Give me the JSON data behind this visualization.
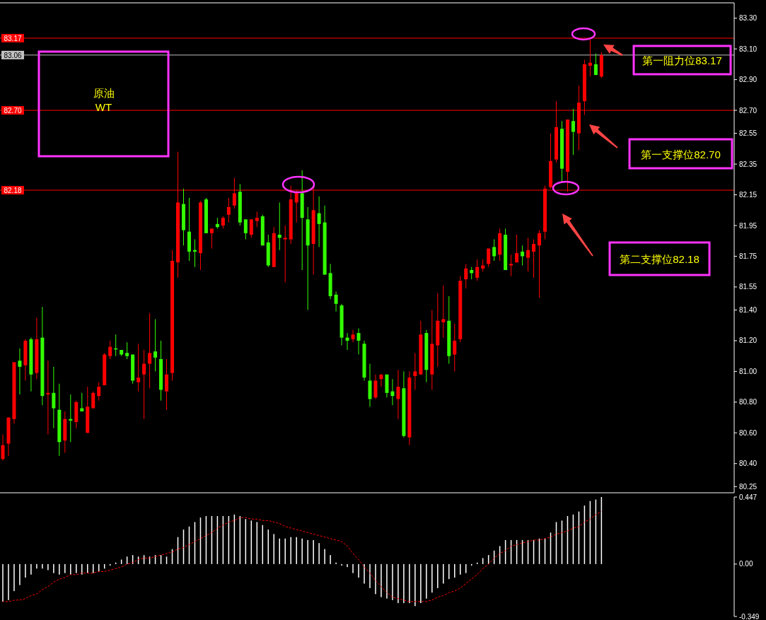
{
  "chart_data": [
    {
      "type": "candlestick",
      "categories": [
        null,
        null,
        null,
        null,
        null,
        null,
        null,
        null,
        null,
        null,
        null,
        null,
        null,
        null,
        null,
        null,
        null,
        null,
        null,
        null,
        null,
        null,
        null,
        null,
        null,
        null,
        null,
        null,
        null,
        null,
        null,
        null,
        null,
        null,
        null,
        null,
        null,
        null,
        null,
        null,
        null,
        null,
        null,
        null,
        null,
        null,
        null,
        null,
        null,
        null,
        null,
        null,
        null,
        null,
        null,
        null,
        null,
        null,
        null,
        null,
        null,
        null,
        null,
        null,
        null,
        null,
        null,
        null,
        null,
        null,
        null,
        null,
        null,
        null,
        null,
        null,
        null,
        null,
        null,
        null,
        null,
        null,
        null,
        null,
        null,
        null,
        null,
        null,
        null,
        null,
        null,
        null,
        null,
        null,
        null,
        null,
        null,
        null,
        null,
        null,
        null,
        null,
        null,
        null,
        null,
        null,
        null,
        null,
        null,
        null,
        null,
        null,
        null,
        null,
        null,
        null,
        null,
        null,
        null,
        null,
        null,
        null,
        null,
        null,
        null,
        null,
        null,
        null,
        null,
        null
      ],
      "ohlc": [
        [
          80.43,
          80.59,
          80.42,
          80.52
        ],
        [
          80.53,
          80.7,
          80.45,
          80.7
        ],
        [
          80.69,
          81.06,
          80.66,
          81.06
        ],
        [
          81.07,
          81.15,
          80.85,
          81.03
        ],
        [
          81.04,
          81.21,
          80.94,
          81.2
        ],
        [
          81.21,
          81.22,
          80.87,
          80.98
        ],
        [
          80.99,
          81.35,
          80.95,
          81.21
        ],
        [
          81.22,
          81.42,
          80.78,
          80.84
        ],
        [
          80.85,
          81.07,
          80.59,
          80.86
        ],
        [
          80.86,
          81.03,
          80.63,
          80.76
        ],
        [
          80.75,
          80.92,
          80.45,
          80.54
        ],
        [
          80.55,
          80.74,
          80.47,
          80.69
        ],
        [
          80.69,
          80.85,
          80.54,
          80.68
        ],
        [
          80.67,
          80.81,
          80.63,
          80.8
        ],
        [
          80.76,
          80.86,
          80.74,
          80.74
        ],
        [
          80.6,
          80.9,
          80.6,
          80.77
        ],
        [
          80.76,
          80.87,
          80.76,
          80.86
        ],
        [
          80.84,
          80.93,
          80.81,
          80.9
        ],
        [
          80.91,
          81.12,
          80.91,
          81.11
        ],
        [
          81.1,
          81.2,
          81.08,
          81.16
        ],
        [
          81.15,
          81.24,
          81.1,
          81.15
        ],
        [
          81.14,
          81.14,
          81.1,
          81.11
        ],
        [
          81.12,
          81.19,
          81.08,
          81.1
        ],
        [
          81.11,
          81.11,
          80.92,
          80.94
        ],
        [
          80.93,
          81.18,
          80.87,
          80.96
        ],
        [
          80.98,
          81.14,
          80.69,
          81.05
        ],
        [
          81.05,
          81.38,
          80.89,
          81.12
        ],
        [
          81.13,
          81.34,
          81.0,
          81.09
        ],
        [
          81.08,
          81.2,
          80.81,
          80.88
        ],
        [
          80.87,
          81.08,
          80.75,
          80.98
        ],
        [
          80.99,
          81.79,
          80.94,
          81.72
        ],
        [
          81.71,
          82.43,
          81.61,
          82.1
        ],
        [
          82.09,
          82.19,
          81.82,
          81.92
        ],
        [
          81.91,
          82.13,
          81.72,
          81.78
        ],
        [
          81.79,
          81.86,
          81.68,
          81.78
        ],
        [
          81.77,
          82.11,
          81.66,
          82.1
        ],
        [
          82.12,
          82.13,
          81.9,
          81.9
        ],
        [
          81.9,
          81.93,
          81.8,
          81.93
        ],
        [
          81.96,
          82.0,
          81.93,
          81.94
        ],
        [
          81.95,
          82.01,
          81.93,
          82.0
        ],
        [
          82.02,
          82.13,
          81.97,
          82.07
        ],
        [
          82.08,
          82.26,
          82.06,
          82.16
        ],
        [
          82.17,
          82.22,
          81.95,
          81.97
        ],
        [
          81.99,
          81.99,
          81.86,
          81.9
        ],
        [
          81.89,
          81.99,
          81.87,
          81.99
        ],
        [
          81.98,
          82.04,
          81.94,
          82.0
        ],
        [
          82.01,
          82.02,
          81.82,
          81.82
        ],
        [
          81.84,
          81.89,
          81.68,
          81.69
        ],
        [
          81.68,
          81.94,
          81.68,
          81.9
        ],
        [
          81.89,
          82.1,
          81.79,
          81.87
        ],
        [
          81.86,
          81.95,
          81.58,
          81.87
        ],
        [
          81.86,
          82.21,
          81.83,
          82.12
        ],
        [
          82.1,
          82.18,
          81.97,
          82.17
        ],
        [
          82.16,
          82.31,
          81.66,
          82.0
        ],
        [
          81.99,
          82.07,
          81.4,
          81.82
        ],
        [
          81.83,
          82.2,
          81.63,
          82.05
        ],
        [
          82.03,
          82.14,
          81.81,
          81.96
        ],
        [
          81.97,
          82.08,
          81.63,
          81.63
        ],
        [
          81.64,
          81.7,
          81.47,
          81.49
        ],
        [
          81.5,
          81.52,
          81.39,
          81.44
        ],
        [
          81.43,
          81.44,
          81.17,
          81.22
        ],
        [
          81.22,
          81.25,
          81.14,
          81.2
        ],
        [
          81.21,
          81.27,
          81.19,
          81.24
        ],
        [
          81.25,
          81.28,
          81.11,
          81.2
        ],
        [
          81.18,
          81.2,
          80.94,
          80.96
        ],
        [
          80.94,
          81.05,
          80.77,
          80.82
        ],
        [
          80.83,
          80.98,
          80.82,
          80.94
        ],
        [
          80.95,
          80.98,
          80.9,
          80.98
        ],
        [
          80.98,
          80.98,
          80.83,
          80.86
        ],
        [
          80.87,
          80.95,
          80.78,
          80.84
        ],
        [
          80.82,
          81.01,
          80.69,
          80.9
        ],
        [
          80.89,
          81.0,
          80.57,
          80.58
        ],
        [
          80.57,
          81.0,
          80.52,
          80.96
        ],
        [
          80.97,
          81.12,
          80.88,
          81.0
        ],
        [
          80.98,
          81.33,
          80.98,
          81.24
        ],
        [
          81.25,
          81.27,
          80.93,
          81.01
        ],
        [
          80.98,
          81.4,
          80.88,
          81.18
        ],
        [
          81.17,
          81.51,
          81.03,
          81.33
        ],
        [
          81.32,
          81.56,
          81.22,
          81.34
        ],
        [
          81.33,
          81.49,
          81.05,
          81.1
        ],
        [
          81.11,
          81.31,
          81.0,
          81.2
        ],
        [
          81.21,
          81.62,
          81.19,
          81.59
        ],
        [
          81.6,
          81.7,
          81.54,
          81.67
        ],
        [
          81.66,
          81.68,
          81.6,
          81.64
        ],
        [
          81.61,
          81.73,
          81.59,
          81.68
        ],
        [
          81.67,
          81.73,
          81.65,
          81.69
        ],
        [
          81.7,
          81.8,
          81.68,
          81.8
        ],
        [
          81.81,
          81.86,
          81.72,
          81.75
        ],
        [
          81.76,
          81.93,
          81.72,
          81.9
        ],
        [
          81.89,
          81.93,
          81.66,
          81.66
        ],
        [
          81.69,
          81.76,
          81.62,
          81.7
        ],
        [
          81.71,
          81.89,
          81.71,
          81.77
        ],
        [
          81.78,
          81.82,
          81.69,
          81.75
        ],
        [
          81.74,
          81.87,
          81.65,
          81.79
        ],
        [
          81.78,
          81.86,
          81.61,
          81.83
        ],
        [
          81.82,
          81.92,
          81.48,
          81.9
        ],
        [
          81.91,
          82.21,
          81.86,
          82.19
        ],
        [
          82.2,
          82.55,
          82.19,
          82.37
        ],
        [
          82.38,
          82.76,
          82.36,
          82.59
        ],
        [
          82.58,
          82.63,
          82.23,
          82.32
        ],
        [
          82.3,
          82.64,
          82.17,
          82.64
        ],
        [
          82.63,
          82.71,
          82.41,
          82.56
        ],
        [
          82.55,
          82.86,
          82.44,
          82.75
        ],
        [
          82.76,
          83.03,
          82.67,
          83.0
        ],
        [
          82.99,
          83.17,
          82.92,
          83.01
        ],
        [
          83.0,
          83.07,
          82.93,
          82.93
        ],
        [
          82.92,
          83.08,
          82.91,
          83.06
        ],
        null,
        null,
        null,
        null,
        null,
        null,
        null,
        null,
        null,
        null,
        null,
        null,
        null,
        null,
        null,
        null,
        null,
        null,
        null,
        null,
        null,
        null,
        null
      ],
      "colors": [
        "#ff0000",
        "#ff0000",
        "#ff0000",
        "#33ff00",
        "#ff0000",
        "#33ff00",
        "#ff0000",
        "#33ff00",
        "#ff0000",
        "#33ff00",
        "#33ff00",
        "#ff0000",
        "#33ff00",
        "#ff0000",
        "#33ff00",
        "#ff0000",
        "#ff0000",
        "#ff0000",
        "#ff0000",
        "#ff0000",
        "#33ff00",
        "#33ff00",
        "#33ff00",
        "#33ff00",
        "#ff0000",
        "#ff0000",
        "#ff0000",
        "#33ff00",
        "#33ff00",
        "#ff0000",
        "#ff0000",
        "#ff0000",
        "#33ff00",
        "#33ff00",
        "#33ff00",
        "#ff0000",
        "#33ff00",
        "#ff0000",
        "#33ff00",
        "#ff0000",
        "#ff0000",
        "#ff0000",
        "#33ff00",
        "#33ff00",
        "#ff0000",
        "#ff0000",
        "#33ff00",
        "#33ff00",
        "#ff0000",
        "#33ff00",
        "#ff0000",
        "#ff0000",
        "#ff0000",
        "#33ff00",
        "#33ff00",
        "#ff0000",
        "#33ff00",
        "#33ff00",
        "#33ff00",
        "#33ff00",
        "#33ff00",
        "#33ff00",
        "#ff0000",
        "#33ff00",
        "#33ff00",
        "#33ff00",
        "#ff0000",
        "#ff0000",
        "#33ff00",
        "#33ff00",
        "#ff0000",
        "#33ff00",
        "#ff0000",
        "#ff0000",
        "#ff0000",
        "#33ff00",
        "#ff0000",
        "#ff0000",
        "#ff0000",
        "#33ff00",
        "#ff0000",
        "#ff0000",
        "#ff0000",
        "#33ff00",
        "#ff0000",
        "#ff0000",
        "#ff0000",
        "#33ff00",
        "#ff0000",
        "#33ff00",
        "#ff0000",
        "#ff0000",
        "#33ff00",
        "#ff0000",
        "#ff0000",
        "#ff0000",
        "#ff0000",
        "#ff0000",
        "#ff0000",
        "#33ff00",
        "#ff0000",
        "#33ff00",
        "#ff0000",
        "#ff0000",
        "#ff0000",
        "#33ff00",
        "#ff0000",
        null,
        null,
        null,
        null,
        null,
        null,
        null,
        null,
        null,
        null,
        null,
        null,
        null,
        null,
        null,
        null,
        null,
        null,
        null,
        null,
        null,
        null,
        null
      ],
      "ylim": [
        80.21,
        83.4
      ],
      "yticks": [
        {
          "value": 83.3,
          "label": "83.30"
        },
        {
          "value": 83.1,
          "label": "83.10"
        },
        {
          "value": 82.9,
          "label": "82.90"
        },
        {
          "value": 82.7,
          "label": "82.70"
        },
        82.55,
        82.35,
        82.15,
        81.95,
        81.75,
        81.55,
        {
          "value": 81.4,
          "label": "81.40"
        },
        {
          "value": 81.2,
          "label": "81.20"
        },
        {
          "value": 81.0,
          "label": "81.00"
        },
        {
          "value": 80.8,
          "label": "80.80"
        },
        {
          "value": 80.6,
          "label": "80.60"
        },
        {
          "value": 80.4,
          "label": "80.40"
        },
        80.25
      ],
      "ref_lines": [
        {
          "axis": "y",
          "value": 83.17,
          "label": "83.17",
          "color": "#ff0000"
        },
        {
          "axis": "y",
          "value": 83.06,
          "label": "83.06",
          "color": "#c0c0c0"
        },
        {
          "axis": "y",
          "value": 82.7,
          "label": "82.70",
          "color": "#ff0000"
        },
        {
          "axis": "y",
          "value": 82.18,
          "label": "82.18",
          "color": "#ff0000"
        }
      ],
      "annotations": [
        "原油\nWT",
        "第一阻力位83.17",
        "第一支撑位82.70",
        "第二支撑位82.18"
      ],
      "tick_labels": "y"
    },
    {
      "type": "bar",
      "categories": [
        null,
        null,
        null,
        null,
        null,
        null,
        null,
        null,
        null,
        null,
        null,
        null,
        null,
        null,
        null,
        null,
        null,
        null,
        null,
        null,
        null,
        null,
        null,
        null,
        null,
        null,
        null,
        null,
        null,
        null,
        null,
        null,
        null,
        null,
        null,
        null,
        null,
        null,
        null,
        null,
        null,
        null,
        null,
        null,
        null,
        null,
        null,
        null,
        null,
        null,
        null,
        null,
        null,
        null,
        null,
        null,
        null,
        null,
        null,
        null,
        null,
        null,
        null,
        null,
        null,
        null,
        null,
        null,
        null,
        null,
        null,
        null,
        null,
        null,
        null,
        null,
        null,
        null,
        null,
        null,
        null,
        null,
        null,
        null,
        null,
        null,
        null,
        null,
        null,
        null,
        null,
        null,
        null,
        null,
        null,
        null,
        null,
        null,
        null,
        null,
        null,
        null,
        null,
        null,
        null,
        null,
        null,
        null,
        null,
        null,
        null,
        null,
        null,
        null,
        null,
        null,
        null,
        null,
        null,
        null,
        null,
        null,
        null,
        null,
        null,
        null,
        null,
        null,
        null,
        null
      ],
      "series": [
        {
          "type": "bar",
          "color": "#ffffff",
          "values": [
            -0.25,
            -0.24,
            -0.18,
            -0.14,
            -0.09,
            -0.07,
            -0.03,
            -0.03,
            -0.04,
            -0.06,
            -0.07,
            -0.06,
            -0.07,
            -0.06,
            -0.07,
            -0.06,
            -0.06,
            -0.05,
            -0.03,
            -0.01,
            0.01,
            0.03,
            0.05,
            0.06,
            0.05,
            0.06,
            0.05,
            0.06,
            0.06,
            0.05,
            0.1,
            0.18,
            0.23,
            0.25,
            0.28,
            0.31,
            0.32,
            0.32,
            0.32,
            0.32,
            0.32,
            0.33,
            0.32,
            0.3,
            0.29,
            0.28,
            0.26,
            0.23,
            0.2,
            0.17,
            0.17,
            0.18,
            0.18,
            0.17,
            0.16,
            0.16,
            0.14,
            0.1,
            0.06,
            0.01,
            -0.01,
            -0.02,
            -0.06,
            -0.09,
            -0.13,
            -0.16,
            -0.2,
            -0.22,
            -0.23,
            -0.24,
            -0.26,
            -0.26,
            -0.26,
            -0.28,
            -0.26,
            -0.23,
            -0.19,
            -0.16,
            -0.13,
            -0.1,
            -0.09,
            -0.07,
            -0.06,
            -0.01,
            0.01,
            0.04,
            0.06,
            0.09,
            0.12,
            0.16,
            0.16,
            0.16,
            0.16,
            0.16,
            0.16,
            0.17,
            0.17,
            0.21,
            0.28,
            0.29,
            0.32,
            0.33,
            0.35,
            0.39,
            0.42,
            0.43,
            0.447,
            null,
            null,
            null,
            null,
            null,
            null,
            null,
            null,
            null,
            null,
            null,
            null,
            null,
            null,
            null,
            null,
            null,
            null,
            null,
            null,
            null,
            null,
            null
          ]
        },
        {
          "type": "line",
          "color": "#ff0000",
          "line_style": "dashed",
          "values": [
            -0.25,
            -0.25,
            -0.24,
            -0.24,
            -0.23,
            -0.21,
            -0.2,
            -0.17,
            -0.15,
            -0.12,
            -0.1,
            -0.09,
            -0.07,
            -0.07,
            -0.06,
            -0.06,
            -0.06,
            -0.05,
            -0.05,
            -0.04,
            -0.03,
            -0.02,
            0.0,
            0.01,
            0.03,
            0.04,
            0.04,
            0.05,
            0.06,
            0.07,
            0.08,
            0.1,
            0.11,
            0.13,
            0.15,
            0.17,
            0.19,
            0.21,
            0.24,
            0.26,
            0.28,
            0.29,
            0.31,
            0.31,
            0.3,
            0.3,
            0.29,
            0.29,
            0.28,
            0.27,
            0.25,
            0.24,
            0.23,
            0.22,
            0.21,
            0.2,
            0.19,
            0.18,
            0.17,
            0.16,
            0.15,
            0.12,
            0.07,
            0.03,
            -0.02,
            -0.06,
            -0.11,
            -0.15,
            -0.19,
            -0.22,
            -0.23,
            -0.24,
            -0.25,
            -0.25,
            -0.25,
            -0.25,
            -0.24,
            -0.22,
            -0.21,
            -0.19,
            -0.18,
            -0.16,
            -0.13,
            -0.1,
            -0.07,
            -0.03,
            0.0,
            0.04,
            0.07,
            0.09,
            0.12,
            0.13,
            0.14,
            0.15,
            0.16,
            0.16,
            0.17,
            0.18,
            0.2,
            0.21,
            0.22,
            0.24,
            0.25,
            0.28,
            0.3,
            0.33,
            0.35,
            null,
            null,
            null,
            null,
            null,
            null,
            null,
            null,
            null,
            null,
            null,
            null,
            null,
            null,
            null,
            null,
            null,
            null,
            null,
            null,
            null,
            null,
            null
          ]
        }
      ],
      "ylim": [
        -0.349,
        0.447
      ],
      "yticks": [
        0.447,
        {
          "value": 0,
          "label": "0.00"
        },
        -0.349
      ],
      "tick_labels": "y"
    }
  ]
}
